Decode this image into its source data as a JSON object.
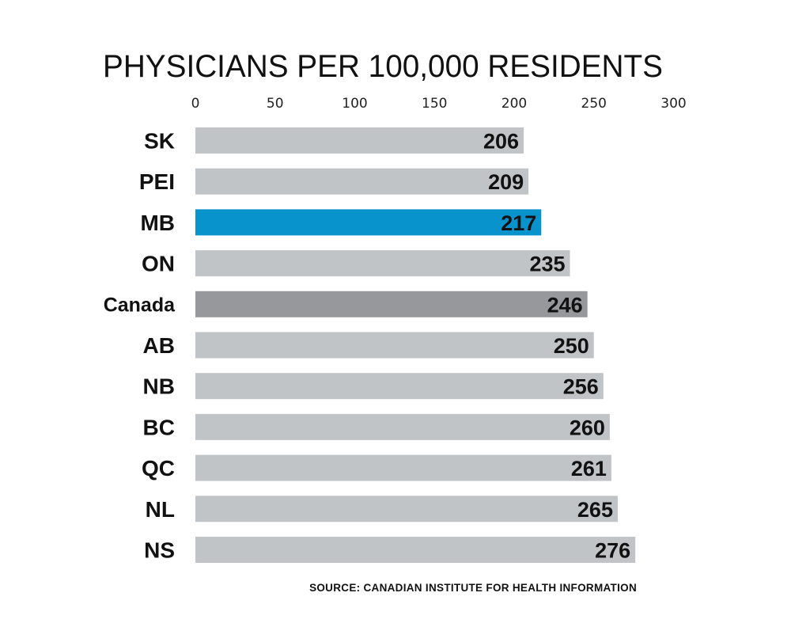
{
  "chart_data": {
    "type": "bar",
    "orientation": "horizontal",
    "title": "PHYSICIANS PER 100,000 RESIDENTS",
    "source": "SOURCE: CANADIAN INSTITUTE FOR HEALTH INFORMATION",
    "xlim": [
      0,
      300
    ],
    "x_ticks": [
      "0",
      "50",
      "100",
      "150",
      "200",
      "250",
      "300"
    ],
    "x_tick_values": [
      0,
      50,
      100,
      150,
      200,
      250,
      300
    ],
    "categories": [
      "SK",
      "PEI",
      "MB",
      "ON",
      "Canada",
      "AB",
      "NB",
      "BC",
      "QC",
      "NL",
      "NS"
    ],
    "values": [
      206,
      209,
      217,
      235,
      246,
      250,
      256,
      260,
      261,
      265,
      276
    ],
    "value_labels": [
      "206",
      "209",
      "217",
      "235",
      "246",
      "250",
      "256",
      "260",
      "261",
      "265",
      "276"
    ],
    "colors": {
      "default": "#c1c4c6",
      "highlight": "#0893cc",
      "national": "#96989b"
    },
    "bar_colors": [
      "default",
      "default",
      "highlight",
      "default",
      "national",
      "default",
      "default",
      "default",
      "default",
      "default",
      "default"
    ],
    "axis_position": "top",
    "grid": false,
    "legend": "none"
  }
}
